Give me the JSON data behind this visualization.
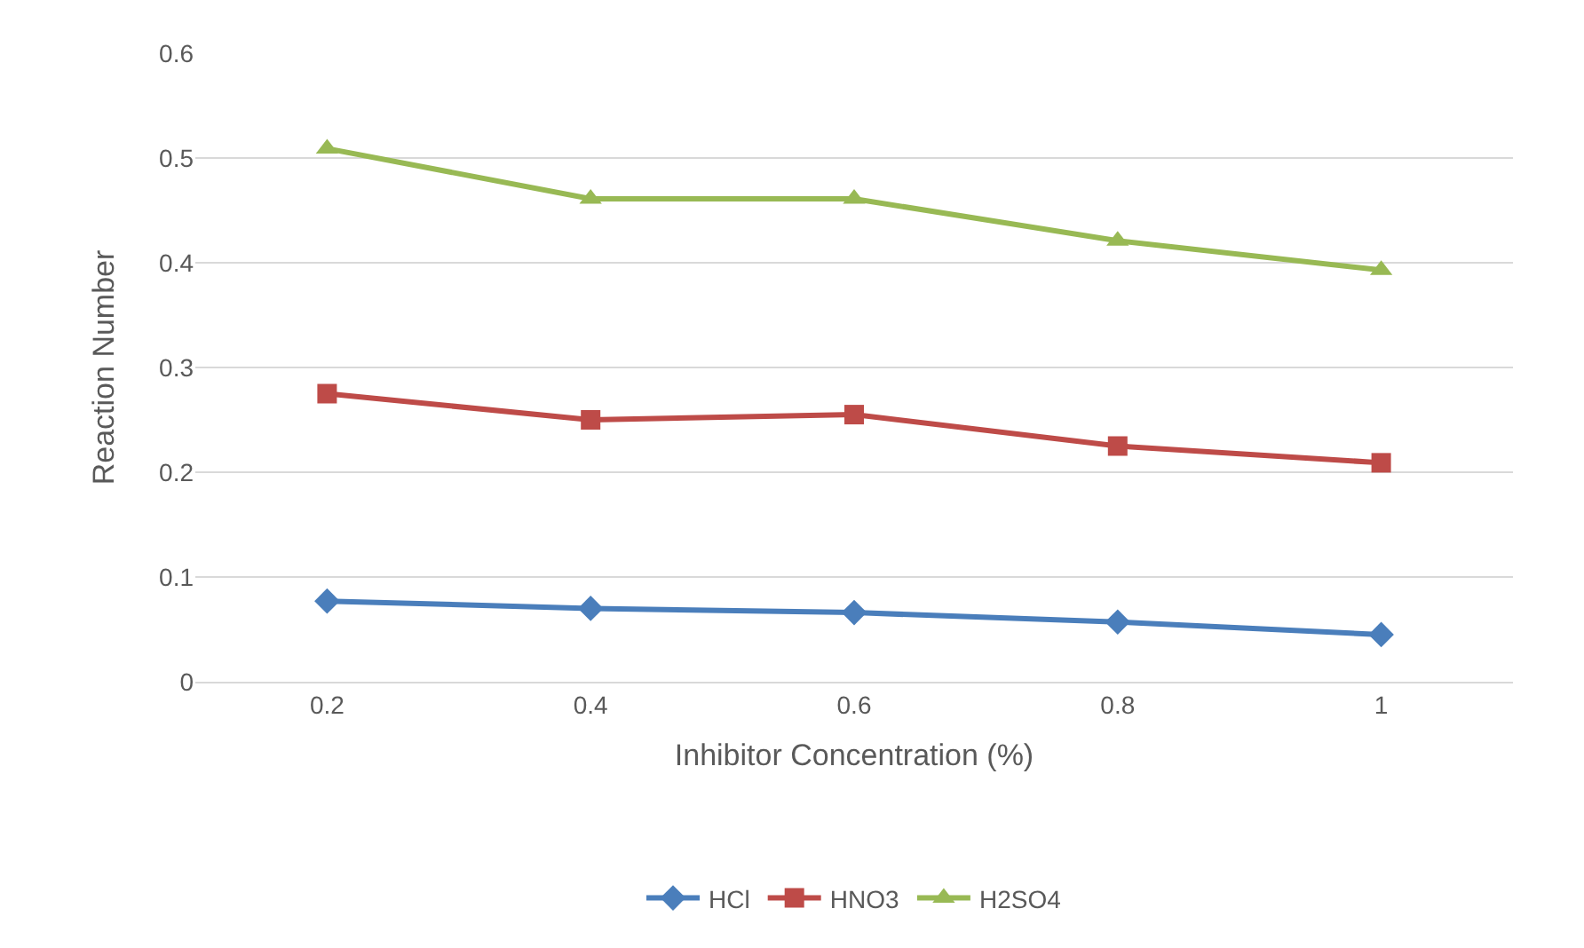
{
  "chart_data": {
    "type": "line",
    "xlabel": "Inhibitor Concentration (%)",
    "ylabel": "Reaction Number",
    "categories": [
      "0.2",
      "0.4",
      "0.6",
      "0.8",
      "1"
    ],
    "series": [
      {
        "name": "HCl",
        "color": "#4a7ebb",
        "marker": "diamond",
        "values": [
          0.077,
          0.07,
          0.066,
          0.057,
          0.045
        ]
      },
      {
        "name": "HNO3",
        "color": "#be4b48",
        "marker": "square",
        "values": [
          0.275,
          0.25,
          0.255,
          0.225,
          0.209
        ]
      },
      {
        "name": "H2SO4",
        "color": "#98b954",
        "marker": "triangle",
        "values": [
          0.509,
          0.461,
          0.461,
          0.421,
          0.393
        ]
      }
    ],
    "ylim": [
      0,
      0.6
    ],
    "yticks": [
      0,
      0.1,
      0.2,
      0.3,
      0.4,
      0.5,
      0.6
    ],
    "grid": "y",
    "legend": "bottom",
    "line_style": "solid"
  }
}
